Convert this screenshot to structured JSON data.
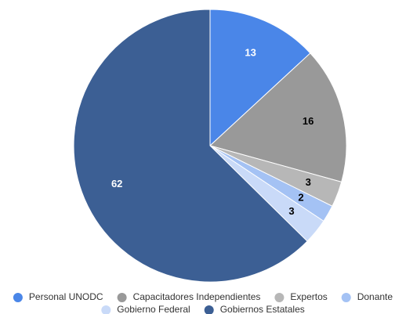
{
  "chart_data": {
    "type": "pie",
    "categories": [
      "Personal UNODC",
      "Capacitadores Independientes",
      "Expertos",
      "Donante",
      "Gobierno Federal",
      "Gobiernos Estatales"
    ],
    "values": [
      13,
      16,
      3,
      2,
      3,
      62
    ],
    "value_labels": [
      "13",
      "16",
      "3",
      "2",
      "3",
      "62"
    ],
    "colors": [
      "#4a86e8",
      "#999999",
      "#b7b7b7",
      "#a4c2f4",
      "#c9daf8",
      "#3c5f94"
    ],
    "label_colors": [
      "#ffffff",
      "#000000",
      "#000000",
      "#000000",
      "#000000",
      "#ffffff"
    ],
    "start_angle_deg": 0,
    "direction": "clockwise",
    "legend_position": "bottom",
    "title": ""
  }
}
